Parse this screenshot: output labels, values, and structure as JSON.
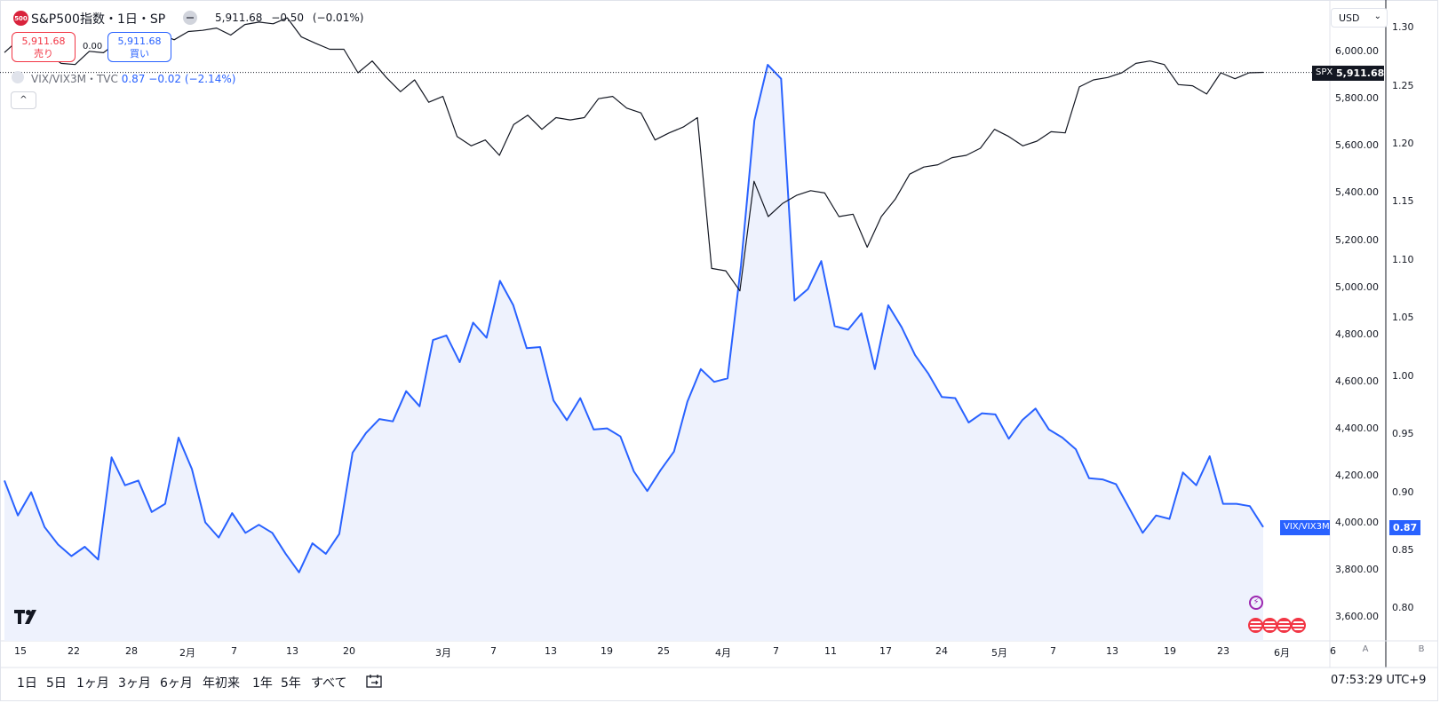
{
  "header": {
    "symbol_badge": "500",
    "symbol_title": "S&P500指数・1日・SP",
    "last": "5,911.68",
    "change": "−0.50",
    "change_pct": "(−0.01%)"
  },
  "trade": {
    "sell_price": "5,911.68",
    "sell_label": "売り",
    "spread": "0.00",
    "buy_price": "5,911.68",
    "buy_label": "買い"
  },
  "overlay_legend": {
    "name": "VIX/VIX3M・TVC",
    "value": "0.87",
    "change": "−0.02",
    "change_pct": "(−2.14%)"
  },
  "collapse_label": "^",
  "axes": {
    "currency": "USD",
    "left_ticks": [
      "6,000.00",
      "5,800.00",
      "5,600.00",
      "5,400.00",
      "5,200.00",
      "5,000.00",
      "4,800.00",
      "4,600.00",
      "4,400.00",
      "4,200.00",
      "4,000.00",
      "3,800.00",
      "3,600.00"
    ],
    "right_ticks": [
      "1.30",
      "1.25",
      "1.20",
      "1.15",
      "1.10",
      "1.05",
      "1.00",
      "0.95",
      "0.90",
      "0.85",
      "0.80"
    ],
    "spx_tag_name": "SPX",
    "spx_tag_value": "5,911.68",
    "vix_tag_name": "VIX/VIX3M",
    "vix_tag_value": "0.87",
    "mode_left": "A",
    "mode_right": "B"
  },
  "x_axis_labels": [
    "15",
    "22",
    "28",
    "2月",
    "7",
    "13",
    "20",
    "3月",
    "7",
    "13",
    "19",
    "25",
    "4月",
    "7",
    "11",
    "17",
    "24",
    "5月",
    "7",
    "13",
    "19",
    "23",
    "6月",
    "6"
  ],
  "range_buttons": [
    "1日",
    "5日",
    "1ヶ月",
    "3ヶ月",
    "6ヶ月",
    "年初来",
    "1年",
    "5年",
    "すべて"
  ],
  "clock": "07:53:29 UTC+9",
  "colors": {
    "spx_line": "#131722",
    "vix_line": "#2962ff",
    "vix_fill": "#eef2fd",
    "sell": "#f23645",
    "buy": "#2962ff"
  },
  "chart_data": {
    "type": "line",
    "series": [
      {
        "name": "SPX",
        "axis": "left",
        "values": [
          5996,
          6050,
          6000,
          5996,
          5950,
          5945,
          6001,
          5995,
          6040,
          6045,
          6070,
          6075,
          6050,
          6085,
          6090,
          6100,
          6070,
          6115,
          6125,
          6118,
          6143,
          6062,
          6035,
          6010,
          6010,
          5910,
          5960,
          5890,
          5830,
          5880,
          5785,
          5810,
          5640,
          5600,
          5625,
          5560,
          5690,
          5730,
          5670,
          5720,
          5710,
          5720,
          5800,
          5810,
          5760,
          5740,
          5625,
          5655,
          5680,
          5720,
          5080,
          5070,
          4985,
          5450,
          5300,
          5355,
          5390,
          5410,
          5400,
          5300,
          5310,
          5170,
          5300,
          5375,
          5480,
          5510,
          5520,
          5550,
          5560,
          5590,
          5670,
          5640,
          5600,
          5620,
          5660,
          5655,
          5850,
          5880,
          5890,
          5910,
          5950,
          5960,
          5945,
          5860,
          5855,
          5820,
          5910,
          5885,
          5910,
          5912
        ]
      },
      {
        "name": "VIX/VIX3M",
        "axis": "right",
        "values": [
          0.91,
          0.88,
          0.9,
          0.87,
          0.855,
          0.845,
          0.853,
          0.842,
          0.93,
          0.906,
          0.91,
          0.883,
          0.89,
          0.947,
          0.92,
          0.874,
          0.861,
          0.882,
          0.865,
          0.872,
          0.865,
          0.847,
          0.831,
          0.856,
          0.847,
          0.864,
          0.934,
          0.951,
          0.963,
          0.961,
          0.987,
          0.974,
          1.031,
          1.035,
          1.012,
          1.046,
          1.033,
          1.082,
          1.061,
          1.024,
          1.025,
          0.979,
          0.962,
          0.981,
          0.954,
          0.955,
          0.948,
          0.918,
          0.901,
          0.919,
          0.935,
          0.978,
          1.006,
          0.995,
          0.998,
          1.095,
          1.22,
          1.268,
          1.256,
          1.065,
          1.075,
          1.099,
          1.043,
          1.04,
          1.054,
          1.006,
          1.061,
          1.042,
          1.018,
          1.002,
          0.982,
          0.981,
          0.96,
          0.968,
          0.967,
          0.946,
          0.962,
          0.972,
          0.954,
          0.947,
          0.937,
          0.912,
          0.911,
          0.907,
          0.886,
          0.865,
          0.88,
          0.877,
          0.917,
          0.906,
          0.931,
          0.89,
          0.89,
          0.888,
          0.87
        ]
      }
    ],
    "ylim_left": [
      3500,
      6200
    ],
    "ylim_right": [
      0.772,
      1.32
    ],
    "grid": false,
    "last_price_line": 5911.68
  }
}
